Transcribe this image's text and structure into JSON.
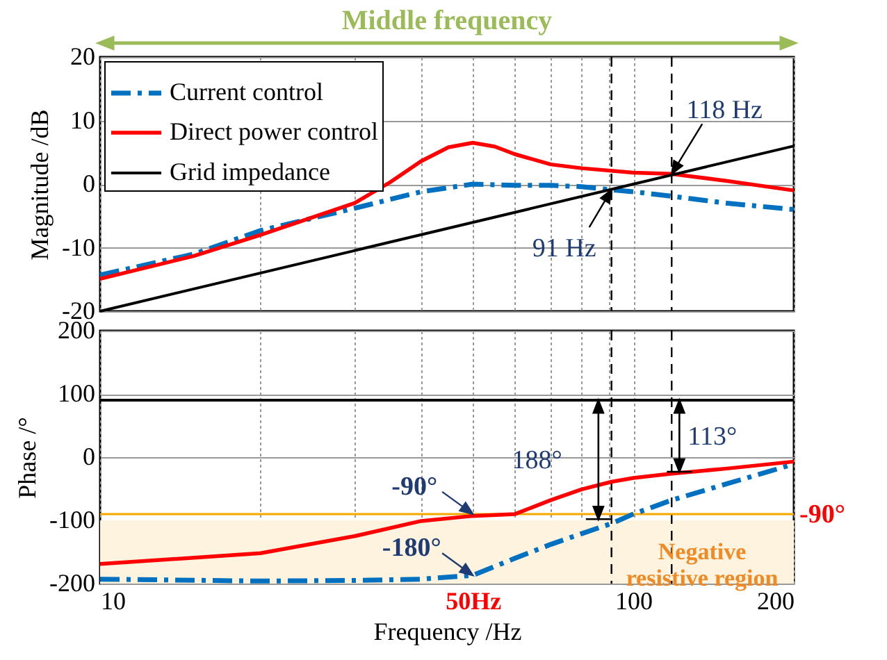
{
  "chart_data": [
    {
      "type": "line",
      "ylabel": "Magnitude /dB",
      "xlim": [
        10,
        200
      ],
      "ylim": [
        -20,
        20
      ],
      "log": "x",
      "xticks": [
        10,
        {
          "value": 20,
          "label": null
        },
        {
          "value": 30,
          "label": null
        },
        {
          "value": 40,
          "label": null
        },
        {
          "value": 50,
          "label": null
        },
        {
          "value": 60,
          "label": null
        },
        {
          "value": 70,
          "label": null
        },
        {
          "value": 80,
          "label": null
        },
        {
          "value": 90,
          "label": null
        },
        100,
        200
      ],
      "yticks": [
        -20,
        -10,
        0,
        10,
        20
      ],
      "tick_labels": "y",
      "grid": true,
      "legend": "top left",
      "series": [
        {
          "name": "Current control",
          "color": "#0070c0",
          "line_style": "dashdot",
          "x": [
            10,
            15,
            20,
            30,
            40,
            50,
            60,
            70,
            80,
            91,
            100,
            118,
            150,
            200
          ],
          "values": [
            -14.3,
            -11.0,
            -7.3,
            -3.8,
            -1.2,
            0,
            -0.2,
            -0.2,
            -0.4,
            -0.9,
            -1.2,
            -1.9,
            -3,
            -4.0
          ]
        },
        {
          "name": "Direct power control",
          "color": "#ff0000",
          "line_style": "solid",
          "x": [
            10,
            15,
            20,
            30,
            35,
            40,
            45,
            50,
            55,
            60,
            70,
            80,
            100,
            118,
            150,
            200
          ],
          "values": [
            -14.9,
            -11.3,
            -8.0,
            -3,
            0.3,
            3.6,
            5.8,
            6.5,
            5.9,
            4.7,
            3.1,
            2.5,
            1.8,
            1.6,
            0.5,
            -1
          ]
        },
        {
          "name": "Grid impedance",
          "color": "#000000",
          "line_style": "solid",
          "x": [
            10,
            100,
            200
          ],
          "values": [
            -20,
            0,
            6
          ]
        }
      ],
      "ref_lines": [
        {
          "axis": "x",
          "value": 91,
          "color": "#000000",
          "line_style": "dashed"
        },
        {
          "axis": "x",
          "value": 118,
          "color": "#000000",
          "line_style": "dashed"
        }
      ],
      "annotations": [
        {
          "text": "91 Hz",
          "x": 91,
          "y": -0.9
        },
        {
          "text": "118 Hz",
          "x": 118,
          "y": 1.6
        },
        "Middle frequency"
      ]
    },
    {
      "type": "line",
      "xlabel": "Frequency /Hz",
      "ylabel": "Phase /°",
      "xlim": [
        10,
        200
      ],
      "ylim": [
        -200,
        200
      ],
      "log": "x",
      "xticks": [
        10,
        {
          "value": 20,
          "label": null
        },
        {
          "value": 30,
          "label": null
        },
        {
          "value": 40,
          "label": null
        },
        {
          "value": 50,
          "label": "50Hz"
        },
        {
          "value": 60,
          "label": null
        },
        {
          "value": 70,
          "label": null
        },
        {
          "value": 80,
          "label": null
        },
        {
          "value": 90,
          "label": null
        },
        100,
        200
      ],
      "yticks": [
        -200,
        -100,
        0,
        100,
        200
      ],
      "grid": true,
      "series": [
        {
          "color": "#0070c0",
          "line_style": "dashdot",
          "x": [
            10,
            20,
            30,
            40,
            50,
            60,
            70,
            80,
            91,
            100,
            118,
            150,
            200
          ],
          "values": [
            -193,
            -196,
            -195,
            -193,
            -187,
            -160,
            -138,
            -121,
            -105,
            -90,
            -68,
            -42,
            -11
          ]
        },
        {
          "color": "#ff0000",
          "line_style": "solid",
          "x": [
            10,
            20,
            30,
            40,
            50,
            60,
            70,
            80,
            91,
            100,
            118,
            150,
            200
          ],
          "values": [
            -169,
            -152,
            -125,
            -101,
            -93,
            -90,
            -68,
            -51,
            -39,
            -33,
            -26,
            -18,
            -7
          ]
        },
        {
          "color": "#000000",
          "line_style": "solid",
          "x": [
            10,
            200
          ],
          "values": [
            90,
            90
          ]
        }
      ],
      "bands": [
        {
          "axis": "y",
          "from": -200,
          "to": -100,
          "label": "Negative resistive region",
          "color": "#fdf3df"
        }
      ],
      "ref_lines": [
        {
          "axis": "x",
          "value": 91,
          "color": "#000000",
          "line_style": "dashed"
        },
        {
          "axis": "x",
          "value": 118,
          "color": "#000000",
          "line_style": "dashed"
        },
        {
          "axis": "y",
          "value": -90,
          "label": "-90°",
          "color": "#f5a800"
        }
      ],
      "annotations": [
        {
          "text": "-90°",
          "x": 50,
          "y": -90
        },
        {
          "text": "-180°",
          "x": 50,
          "y": -187
        },
        {
          "text": "188°",
          "x": 86,
          "y": -98
        },
        {
          "text": "113°",
          "x": 122,
          "y": -23
        }
      ]
    }
  ]
}
